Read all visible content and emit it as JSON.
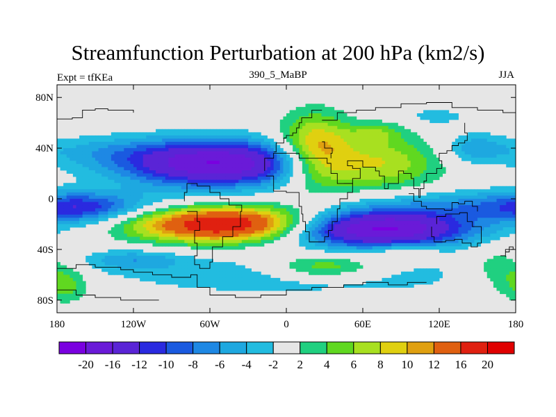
{
  "chart_data": {
    "type": "heatmap",
    "title": "Streamfunction Perturbation at 200 hPa (km2/s)",
    "subtitle_left": "Expt = tfKEa",
    "subtitle_center": "390_5_MaBP",
    "subtitle_right": "JJA",
    "x_ticks": [
      {
        "value": -180,
        "label": "180"
      },
      {
        "value": -120,
        "label": "120W"
      },
      {
        "value": -60,
        "label": "60W"
      },
      {
        "value": 0,
        "label": "0"
      },
      {
        "value": 60,
        "label": "60E"
      },
      {
        "value": 120,
        "label": "120E"
      },
      {
        "value": 180,
        "label": "180"
      }
    ],
    "y_ticks": [
      {
        "value": 80,
        "label": "80N"
      },
      {
        "value": 40,
        "label": "40N"
      },
      {
        "value": 0,
        "label": "0"
      },
      {
        "value": -40,
        "label": "40S"
      },
      {
        "value": -80,
        "label": "80S"
      }
    ],
    "xlim": [
      -180,
      180
    ],
    "ylim": [
      -90,
      90
    ],
    "levels": [
      -20,
      -16,
      -12,
      -10,
      -8,
      -6,
      -4,
      -2,
      2,
      4,
      6,
      8,
      10,
      12,
      16,
      20
    ],
    "level_labels": [
      "-20",
      "-16",
      "-12",
      "-10",
      "-8",
      "-6",
      "-4",
      "-2",
      "2",
      "4",
      "6",
      "8",
      "10",
      "12",
      "16",
      "20"
    ],
    "colors": [
      "#7a00e0",
      "#6a1ad8",
      "#5a24d6",
      "#2a2ae0",
      "#1a5ae0",
      "#1e88e4",
      "#1ea8e0",
      "#22bce0",
      "#e6e6e6",
      "#20d080",
      "#60d820",
      "#a8e020",
      "#e0d010",
      "#e0a010",
      "#e06010",
      "#e02010",
      "#e00000"
    ],
    "features": [
      {
        "lon": -55,
        "lat": 28,
        "rx": 75,
        "ry": 18,
        "amp": -20
      },
      {
        "lon": -48,
        "lat": -20,
        "rx": 70,
        "ry": 14,
        "amp": 21
      },
      {
        "lon": 72,
        "lat": -24,
        "rx": 72,
        "ry": 14,
        "amp": -21
      },
      {
        "lon": 22,
        "lat": 38,
        "rx": 28,
        "ry": 28,
        "amp": 11
      },
      {
        "lon": 68,
        "lat": 28,
        "rx": 50,
        "ry": 22,
        "amp": 9
      },
      {
        "lon": 30,
        "lat": -54,
        "rx": 45,
        "ry": 10,
        "amp": 8
      },
      {
        "lon": 95,
        "lat": -42,
        "rx": 22,
        "ry": 6,
        "amp": 5.5
      },
      {
        "lon": 160,
        "lat": -5,
        "rx": 120,
        "ry": 12,
        "amp": -6
      },
      {
        "lon": -160,
        "lat": -8,
        "rx": 40,
        "ry": 12,
        "amp": -7
      },
      {
        "lon": 10,
        "lat": -60,
        "rx": 150,
        "ry": 16,
        "amp": -4
      },
      {
        "lon": -120,
        "lat": -48,
        "rx": 40,
        "ry": 8,
        "amp": -5
      },
      {
        "lon": 70,
        "lat": 52,
        "rx": 20,
        "ry": 8,
        "amp": 4
      },
      {
        "lon": 165,
        "lat": -55,
        "rx": 25,
        "ry": 18,
        "amp": 4
      },
      {
        "lon": -172,
        "lat": -68,
        "rx": 18,
        "ry": 14,
        "amp": 5
      },
      {
        "lon": -150,
        "lat": 38,
        "rx": 60,
        "ry": 12,
        "amp": -3
      },
      {
        "lon": 147,
        "lat": 40,
        "rx": 24,
        "ry": 12,
        "amp": -5
      },
      {
        "lon": 118,
        "lat": 65,
        "rx": 20,
        "ry": 6,
        "amp": -4
      }
    ],
    "coastlines": [
      [
        [
          -180,
          -55
        ],
        [
          -165,
          -52
        ],
        [
          -150,
          -54
        ],
        [
          -130,
          -56
        ],
        [
          -120,
          -58
        ],
        [
          -105,
          -60
        ],
        [
          -90,
          -62
        ],
        [
          -75,
          -60
        ],
        [
          -70,
          -70
        ],
        [
          -60,
          -76
        ],
        [
          -40,
          -78
        ],
        [
          -20,
          -76
        ],
        [
          0,
          -72
        ],
        [
          20,
          -70
        ],
        [
          45,
          -68
        ],
        [
          60,
          -66
        ],
        [
          80,
          -68
        ],
        [
          95,
          -66
        ],
        [
          110,
          -66
        ]
      ],
      [
        [
          -180,
          -72
        ],
        [
          -165,
          -76
        ],
        [
          -150,
          -78
        ],
        [
          -130,
          -80
        ],
        [
          -100,
          -80
        ]
      ],
      [
        [
          -78,
          -10
        ],
        [
          -70,
          -18
        ],
        [
          -68,
          -25
        ],
        [
          -72,
          -35
        ],
        [
          -70,
          -45
        ],
        [
          -72,
          -52
        ],
        [
          -68,
          -55
        ],
        [
          -60,
          -50
        ],
        [
          -58,
          -38
        ],
        [
          -50,
          -30
        ],
        [
          -42,
          -22
        ],
        [
          -36,
          -10
        ],
        [
          -35,
          -5
        ],
        [
          -45,
          0
        ],
        [
          -52,
          5
        ],
        [
          -60,
          10
        ],
        [
          -70,
          12
        ],
        [
          -78,
          5
        ],
        [
          -80,
          -2
        ]
      ],
      [
        [
          -16,
          18
        ],
        [
          -10,
          6
        ],
        [
          0,
          5
        ],
        [
          10,
          3
        ],
        [
          10,
          -6
        ],
        [
          12,
          -12
        ],
        [
          13,
          -18
        ],
        [
          15,
          -26
        ],
        [
          18,
          -34
        ],
        [
          25,
          -34
        ],
        [
          30,
          -30
        ],
        [
          33,
          -25
        ],
        [
          36,
          -18
        ],
        [
          40,
          -15
        ],
        [
          40,
          -8
        ],
        [
          42,
          0
        ],
        [
          48,
          5
        ],
        [
          52,
          12
        ],
        [
          45,
          12
        ],
        [
          40,
          20
        ],
        [
          35,
          28
        ],
        [
          32,
          32
        ],
        [
          25,
          32
        ],
        [
          10,
          36
        ],
        [
          0,
          36
        ],
        [
          -10,
          32
        ],
        [
          -17,
          22
        ]
      ],
      [
        [
          -10,
          37
        ],
        [
          -8,
          44
        ],
        [
          -2,
          48
        ],
        [
          0,
          50
        ],
        [
          5,
          52
        ],
        [
          8,
          56
        ],
        [
          10,
          60
        ],
        [
          12,
          64
        ],
        [
          20,
          70
        ],
        [
          28,
          70
        ]
      ],
      [
        [
          28,
          45
        ],
        [
          30,
          40
        ],
        [
          36,
          36
        ],
        [
          35,
          32
        ]
      ],
      [
        [
          45,
          12
        ],
        [
          52,
          16
        ],
        [
          58,
          20
        ],
        [
          58,
          24
        ],
        [
          52,
          26
        ],
        [
          48,
          30
        ],
        [
          60,
          25
        ],
        [
          70,
          22
        ],
        [
          73,
          18
        ],
        [
          77,
          8
        ],
        [
          80,
          12
        ],
        [
          88,
          22
        ],
        [
          92,
          20
        ],
        [
          98,
          16
        ],
        [
          100,
          8
        ],
        [
          104,
          1
        ],
        [
          105,
          8
        ],
        [
          108,
          14
        ],
        [
          110,
          20
        ],
        [
          118,
          24
        ],
        [
          122,
          30
        ],
        [
          120,
          36
        ],
        [
          126,
          38
        ],
        [
          130,
          42
        ],
        [
          135,
          44
        ],
        [
          140,
          46
        ],
        [
          142,
          52
        ],
        [
          140,
          60
        ]
      ],
      [
        [
          28,
          62
        ],
        [
          40,
          68
        ],
        [
          55,
          70
        ],
        [
          70,
          72
        ],
        [
          90,
          75
        ],
        [
          110,
          76
        ],
        [
          130,
          72
        ],
        [
          150,
          70
        ],
        [
          170,
          68
        ],
        [
          180,
          66
        ]
      ],
      [
        [
          114,
          -22
        ],
        [
          114,
          -30
        ],
        [
          116,
          -34
        ],
        [
          125,
          -33
        ],
        [
          132,
          -32
        ],
        [
          138,
          -35
        ],
        [
          145,
          -38
        ],
        [
          150,
          -35
        ],
        [
          153,
          -28
        ],
        [
          153,
          -22
        ],
        [
          146,
          -18
        ],
        [
          142,
          -11
        ],
        [
          136,
          -12
        ],
        [
          130,
          -12
        ],
        [
          125,
          -14
        ],
        [
          118,
          -20
        ]
      ],
      [
        [
          96,
          4
        ],
        [
          100,
          -2
        ],
        [
          106,
          -6
        ],
        [
          110,
          -8
        ],
        [
          115,
          -8
        ],
        [
          118,
          -8
        ],
        [
          124,
          -9
        ],
        [
          130,
          -3
        ],
        [
          135,
          -4
        ],
        [
          140,
          -2
        ],
        [
          146,
          -6
        ],
        [
          150,
          -10
        ]
      ],
      [
        [
          168,
          -45
        ],
        [
          172,
          -42
        ],
        [
          175,
          -38
        ],
        [
          178,
          -40
        ],
        [
          172,
          -46
        ]
      ],
      [
        [
          -180,
          63
        ],
        [
          -168,
          64
        ],
        [
          -160,
          70
        ],
        [
          -150,
          71
        ],
        [
          -140,
          70
        ],
        [
          -130,
          70
        ],
        [
          -120,
          68
        ]
      ]
    ]
  }
}
